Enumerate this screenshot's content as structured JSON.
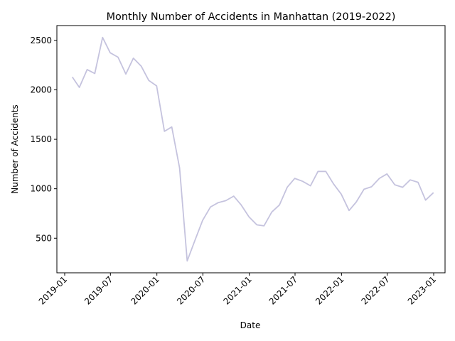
{
  "chart_data": {
    "type": "line",
    "title": "Monthly Number of Accidents in Manhattan (2019-2022)",
    "xlabel": "Date",
    "ylabel": "Number of Accidents",
    "grid": false,
    "legend": "none",
    "line_color": "#c5c3de",
    "xlim": [
      "2018-12-01",
      "2023-02-15"
    ],
    "ylim": [
      150,
      2650
    ],
    "x_ticks": [
      "2019-01",
      "2019-07",
      "2020-01",
      "2020-07",
      "2021-01",
      "2021-07",
      "2022-01",
      "2022-07",
      "2023-01"
    ],
    "y_ticks": [
      500,
      1000,
      1500,
      2000,
      2500
    ],
    "series": [
      {
        "x": [
          "2019-01-31",
          "2019-02-28",
          "2019-03-31",
          "2019-04-30",
          "2019-05-31",
          "2019-06-30",
          "2019-07-31",
          "2019-08-31",
          "2019-09-30",
          "2019-10-31",
          "2019-11-30",
          "2019-12-31",
          "2020-01-31",
          "2020-02-29",
          "2020-03-31",
          "2020-04-30",
          "2020-05-31",
          "2020-06-30",
          "2020-07-31",
          "2020-08-31",
          "2020-09-30",
          "2020-10-31",
          "2020-11-30",
          "2020-12-31",
          "2021-01-31",
          "2021-02-28",
          "2021-03-31",
          "2021-04-30",
          "2021-05-31",
          "2021-06-30",
          "2021-07-31",
          "2021-08-31",
          "2021-09-30",
          "2021-10-31",
          "2021-11-30",
          "2021-12-31",
          "2022-01-31",
          "2022-02-28",
          "2022-03-31",
          "2022-04-30",
          "2022-05-31",
          "2022-06-30",
          "2022-07-31",
          "2022-08-31",
          "2022-09-30",
          "2022-10-31",
          "2022-11-30",
          "2022-12-31"
        ],
        "y": [
          2130,
          2025,
          2205,
          2165,
          2530,
          2375,
          2330,
          2160,
          2320,
          2240,
          2095,
          2040,
          1580,
          1625,
          1210,
          270,
          480,
          680,
          815,
          860,
          880,
          925,
          835,
          715,
          635,
          625,
          765,
          835,
          1015,
          1105,
          1075,
          1030,
          1175,
          1175,
          1050,
          945,
          780,
          865,
          995,
          1020,
          1105,
          1150,
          1040,
          1015,
          1090,
          1065,
          885,
          960
        ]
      }
    ]
  }
}
